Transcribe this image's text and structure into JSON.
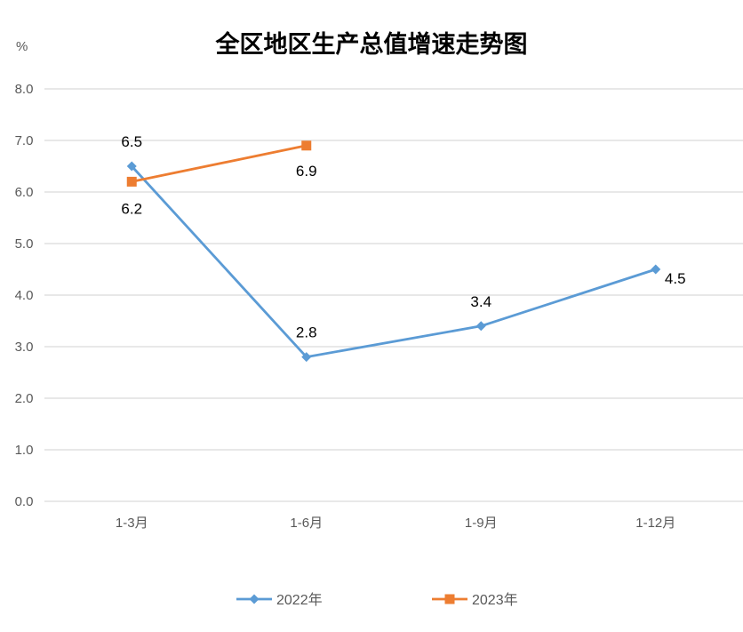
{
  "chart_data": {
    "type": "line",
    "title": "全区地区生产总值增速走势图",
    "ylabel": "%",
    "xlabel": "",
    "categories": [
      "1-3月",
      "1-6月",
      "1-9月",
      "1-12月"
    ],
    "ylim": [
      0,
      8
    ],
    "yticks": [
      "0.0",
      "1.0",
      "2.0",
      "3.0",
      "4.0",
      "5.0",
      "6.0",
      "7.0",
      "8.0"
    ],
    "grid": true,
    "legend_position": "bottom",
    "series": [
      {
        "name": "2022年",
        "values": [
          6.5,
          2.8,
          3.4,
          4.5
        ],
        "labels": [
          "6.5",
          "2.8",
          "3.4",
          "4.5"
        ],
        "color": "#5B9BD5",
        "marker": "diamond"
      },
      {
        "name": "2023年",
        "values": [
          6.2,
          6.9,
          null,
          null
        ],
        "labels": [
          "6.2",
          "6.9",
          "",
          ""
        ],
        "color": "#ED7D31",
        "marker": "square"
      }
    ]
  }
}
